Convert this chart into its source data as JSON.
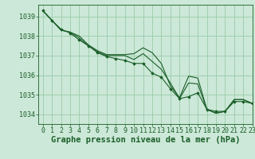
{
  "title": "Graphe pression niveau de la mer (hPa)",
  "bg_color": "#cce8d8",
  "grid_color": "#99ccaa",
  "line_color": "#1a5e28",
  "marker_color": "#1a5e28",
  "xlim": [
    -0.5,
    23
  ],
  "ylim": [
    1033.5,
    1039.6
  ],
  "yticks": [
    1034,
    1035,
    1036,
    1037,
    1038,
    1039
  ],
  "xticks": [
    0,
    1,
    2,
    3,
    4,
    5,
    6,
    7,
    8,
    9,
    10,
    11,
    12,
    13,
    14,
    15,
    16,
    17,
    18,
    19,
    20,
    21,
    22,
    23
  ],
  "series1": [
    1039.3,
    1038.8,
    1038.3,
    1038.2,
    1038.0,
    1037.55,
    1037.25,
    1037.05,
    1037.05,
    1037.05,
    1037.1,
    1037.4,
    1037.15,
    1036.6,
    1035.45,
    1034.85,
    1035.95,
    1035.85,
    1034.25,
    1034.05,
    1034.15,
    1034.75,
    1034.75,
    1034.55
  ],
  "series2": [
    1039.3,
    1038.8,
    1038.3,
    1038.2,
    1037.9,
    1037.5,
    1037.2,
    1037.0,
    1037.0,
    1037.0,
    1036.8,
    1037.1,
    1036.7,
    1036.3,
    1035.6,
    1034.8,
    1035.6,
    1035.55,
    1034.25,
    1034.05,
    1034.15,
    1034.75,
    1034.75,
    1034.55
  ],
  "series3": [
    1039.3,
    1038.8,
    1038.35,
    1038.15,
    1037.8,
    1037.5,
    1037.15,
    1036.95,
    1036.85,
    1036.75,
    1036.6,
    1036.6,
    1036.1,
    1035.9,
    1035.3,
    1034.8,
    1034.9,
    1035.1,
    1034.25,
    1034.15,
    1034.15,
    1034.65,
    1034.65,
    1034.55
  ],
  "title_fontsize": 7.5,
  "tick_fontsize": 6.0
}
